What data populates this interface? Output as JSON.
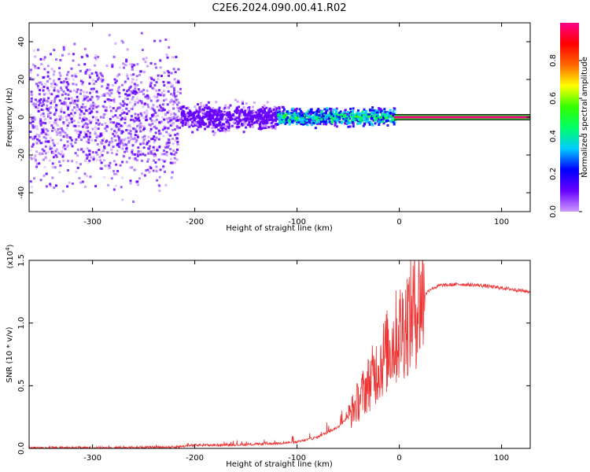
{
  "title": "C2E6.2024.090.00.41.R02",
  "chart_data": [
    {
      "type": "heatmap",
      "xlabel": "Height of straight line (km)",
      "ylabel": "Frequency (Hz)",
      "xlim": [
        -362,
        128
      ],
      "ylim": [
        -50,
        50
      ],
      "xticks": [
        -300,
        -200,
        -100,
        0,
        100
      ],
      "yticks": [
        -40,
        -20,
        0,
        20,
        40
      ],
      "colorbar": {
        "label": "Normalized spectral amplitude",
        "range": [
          0.0,
          1.0
        ],
        "ticks": [
          0.0,
          0.2,
          0.4,
          0.6,
          0.8
        ],
        "colors": [
          "#cc99ff",
          "#6600ff",
          "#0000ff",
          "#00ccff",
          "#00ff66",
          "#33ff00",
          "#ffff00",
          "#ff6600",
          "#ff0000",
          "#ff0088"
        ]
      },
      "series": [
        {
          "values": [
            {
              "x": [
                -362,
                -215
              ],
              "freq_spread_hz": 50,
              "amplitude": 0.05
            },
            {
              "x": [
                -215,
                -120
              ],
              "freq_spread_hz": 10,
              "amplitude": 0.12
            },
            {
              "x": [
                -120,
                -5
              ],
              "freq_center_hz": 0,
              "freq_spread_hz": 6,
              "amplitude": 0.45
            },
            {
              "x": [
                -5,
                128
              ],
              "freq_center_hz": 0,
              "freq_spread_hz": 1,
              "amplitude": 1.0
            }
          ]
        }
      ]
    },
    {
      "type": "line",
      "xlabel": "Height of straight line (km)",
      "ylabel": "SNR (10 * v/v)",
      "scale_label": "(x10",
      "scale_exp": "4",
      "scale_close": ")",
      "xlim": [
        -362,
        128
      ],
      "ylim": [
        0,
        1.5
      ],
      "xticks": [
        -300,
        -200,
        -100,
        0,
        100
      ],
      "yticks": [
        0.0,
        0.5,
        1.0,
        1.5
      ],
      "color": "#ee3333",
      "series": [
        {
          "x": [
            -362,
            -300,
            -250,
            -220,
            -200,
            -150,
            -120,
            -100,
            -80,
            -60,
            -50,
            -40,
            -30,
            -20,
            -10,
            0,
            10,
            20,
            30,
            40,
            60,
            80,
            100,
            128
          ],
          "values": [
            0.005,
            0.005,
            0.008,
            0.012,
            0.025,
            0.03,
            0.04,
            0.05,
            0.09,
            0.17,
            0.25,
            0.38,
            0.52,
            0.66,
            0.8,
            0.92,
            1.05,
            1.18,
            1.27,
            1.3,
            1.31,
            1.3,
            1.28,
            1.25
          ]
        }
      ]
    }
  ]
}
